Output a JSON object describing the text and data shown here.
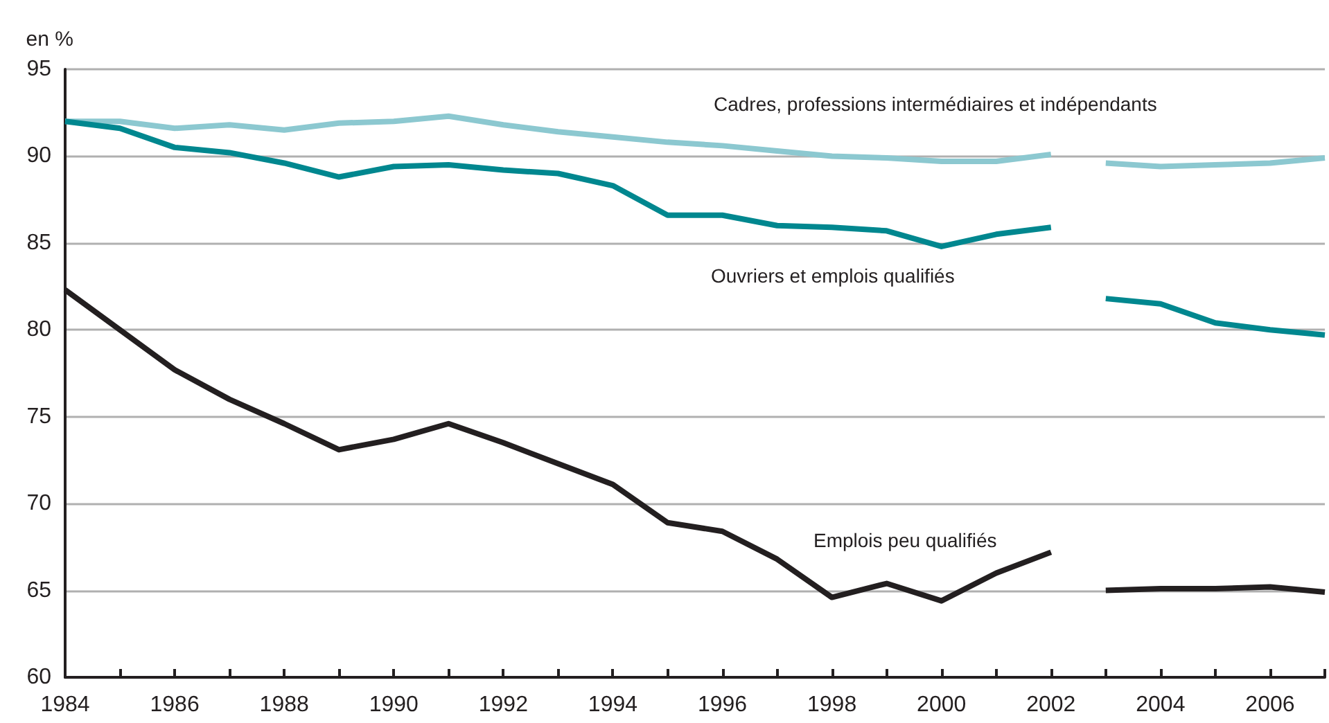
{
  "chart_data": {
    "type": "line",
    "ylabel": "en %",
    "xlim": [
      1984,
      2007
    ],
    "xticks": [
      1984,
      {
        "value": 1985,
        "label": null
      },
      1986,
      {
        "value": 1987,
        "label": null
      },
      1988,
      {
        "value": 1989,
        "label": null
      },
      1990,
      {
        "value": 1991,
        "label": null
      },
      1992,
      {
        "value": 1993,
        "label": null
      },
      1994,
      {
        "value": 1995,
        "label": null
      },
      1996,
      {
        "value": 1997,
        "label": null
      },
      1998,
      {
        "value": 1999,
        "label": null
      },
      2000,
      {
        "value": 2001,
        "label": null
      },
      2002,
      {
        "value": 2003,
        "label": null
      },
      2004,
      {
        "value": 2005,
        "label": null
      },
      2006,
      {
        "value": 2007,
        "label": null
      }
    ],
    "ylim": [
      60,
      95
    ],
    "yticks": [
      60,
      65,
      70,
      75,
      80,
      85,
      90,
      95
    ],
    "grid": "y",
    "marker": "none",
    "line_style": "solid",
    "series": [
      {
        "color": "#8cc8d0",
        "x": [
          1984,
          1985,
          1986,
          1987,
          1988,
          1989,
          1990,
          1991,
          1992,
          1993,
          1994,
          1995,
          1996,
          1997,
          1998,
          1999,
          2000,
          2001,
          2002
        ],
        "values": [
          92.0,
          92.0,
          91.6,
          91.8,
          91.5,
          91.9,
          92.0,
          92.3,
          91.8,
          91.4,
          91.1,
          90.8,
          90.6,
          90.3,
          90.0,
          89.9,
          89.7,
          89.7,
          90.1
        ]
      },
      {
        "color": "#8cc8d0",
        "x": [
          2003,
          2004,
          2005,
          2006,
          2007
        ],
        "values": [
          89.6,
          89.4,
          89.5,
          89.6,
          89.9
        ]
      },
      {
        "color": "#00878f",
        "x": [
          1984,
          1985,
          1986,
          1987,
          1988,
          1989,
          1990,
          1991,
          1992,
          1993,
          1994,
          1995,
          1996,
          1997,
          1998,
          1999,
          2000,
          2001,
          2002
        ],
        "values": [
          92.0,
          91.6,
          90.5,
          90.2,
          89.6,
          88.8,
          89.4,
          89.5,
          89.2,
          89.0,
          88.3,
          86.6,
          86.6,
          86.0,
          85.9,
          85.7,
          84.8,
          85.5,
          85.9
        ]
      },
      {
        "color": "#00878f",
        "x": [
          2003,
          2004,
          2005,
          2006,
          2007
        ],
        "values": [
          81.8,
          81.5,
          80.4,
          80.0,
          79.7
        ]
      },
      {
        "color": "#231f20",
        "x": [
          1984,
          1985,
          1986,
          1987,
          1988,
          1989,
          1990,
          1991,
          1992,
          1993,
          1994,
          1995,
          1996,
          1997,
          1998,
          1999,
          2000,
          2001,
          2002
        ],
        "values": [
          82.3,
          80.0,
          77.7,
          76.0,
          74.6,
          73.1,
          73.7,
          74.6,
          73.5,
          72.3,
          71.1,
          68.9,
          68.4,
          66.8,
          64.6,
          65.4,
          64.4,
          66.0,
          67.2
        ]
      },
      {
        "color": "#231f20",
        "x": [
          2003,
          2004,
          2005,
          2006,
          2007
        ],
        "values": [
          65.0,
          65.1,
          65.1,
          65.2,
          64.9
        ]
      }
    ],
    "annotations": [
      "Cadres, professions intermédiaires et indépendants",
      "Ouvriers et emplois qualifiés",
      "Emplois peu qualifiés"
    ]
  }
}
